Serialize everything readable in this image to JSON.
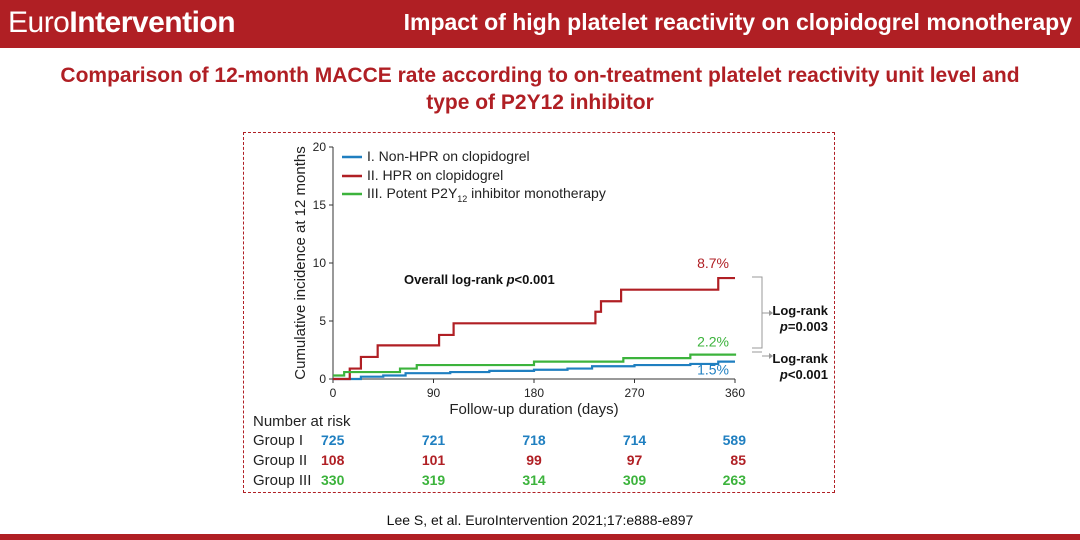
{
  "header": {
    "brand_part1": "Euro",
    "brand_part2": "Intervention",
    "title": "Impact of high platelet reactivity on clopidogrel monotherapy"
  },
  "subtitle_line1": "Comparison of 12-month MACCE rate according to on-treatment platelet reactivity unit level and",
  "subtitle_line2": "type of P2Y12 inhibitor",
  "citation": "Lee S, et al. EuroIntervention 2021;17:e888-e897",
  "colors": {
    "brand": "#b01f24",
    "group1": "#1f7fc0",
    "group2": "#b01f24",
    "group3": "#3cb33c"
  },
  "chart_data": {
    "type": "line",
    "xlabel": "Follow-up duration (days)",
    "ylabel": "Cumulative incidence at 12 months",
    "xlim": [
      0,
      360
    ],
    "ylim": [
      0,
      20
    ],
    "xticks": [
      0,
      90,
      180,
      270,
      360
    ],
    "yticks": [
      0,
      5,
      10,
      15,
      20
    ],
    "grid": false,
    "legend_position": "top-left",
    "series": [
      {
        "name": "I. Non-HPR on clopidogrel",
        "color": "#1f7fc0",
        "x": [
          0,
          25,
          45,
          65,
          105,
          140,
          180,
          210,
          232,
          270,
          320,
          345,
          360
        ],
        "y": [
          0,
          0.2,
          0.3,
          0.5,
          0.6,
          0.7,
          0.8,
          0.9,
          1.1,
          1.2,
          1.3,
          1.5,
          1.5
        ],
        "end_label": "1.5%"
      },
      {
        "name": "II. HPR on clopidogrel",
        "color": "#b01f24",
        "x": [
          0,
          15,
          25,
          40,
          55,
          95,
          108,
          123,
          235,
          240,
          250,
          258,
          345,
          360
        ],
        "y": [
          0,
          0.9,
          1.9,
          2.9,
          2.9,
          3.8,
          4.8,
          4.8,
          5.8,
          6.7,
          6.7,
          7.7,
          8.7,
          8.7
        ],
        "end_label": "8.7%"
      },
      {
        "name": "III. Potent P2Y12 inhibitor monotherapy",
        "name_main": "III. Potent P2Y",
        "name_sub": "12",
        "name_tail": " inhibitor monotherapy",
        "color": "#3cb33c",
        "x": [
          0,
          10,
          60,
          75,
          180,
          260,
          320,
          360
        ],
        "y": [
          0.3,
          0.6,
          0.9,
          1.2,
          1.5,
          1.8,
          2.1,
          2.2
        ],
        "end_label": "2.2%"
      }
    ],
    "annotations": {
      "overall_main": "Overall log-rank ",
      "overall_p": "p",
      "overall_val": "<0.001",
      "logrank1_line1": "Log-rank",
      "logrank1_p": "p",
      "logrank1_val": "=0.003",
      "logrank2_line1": "Log-rank",
      "logrank2_p": "p",
      "logrank2_val": "<0.001"
    },
    "risk_table": {
      "title": "Number at risk",
      "rows": [
        {
          "label": "Group I",
          "values": [
            "725",
            "721",
            "718",
            "714",
            "589"
          ]
        },
        {
          "label": "Group II",
          "values": [
            "108",
            "101",
            "99",
            "97",
            "85"
          ]
        },
        {
          "label": "Group III",
          "values": [
            "330",
            "319",
            "314",
            "309",
            "263"
          ]
        }
      ]
    }
  }
}
